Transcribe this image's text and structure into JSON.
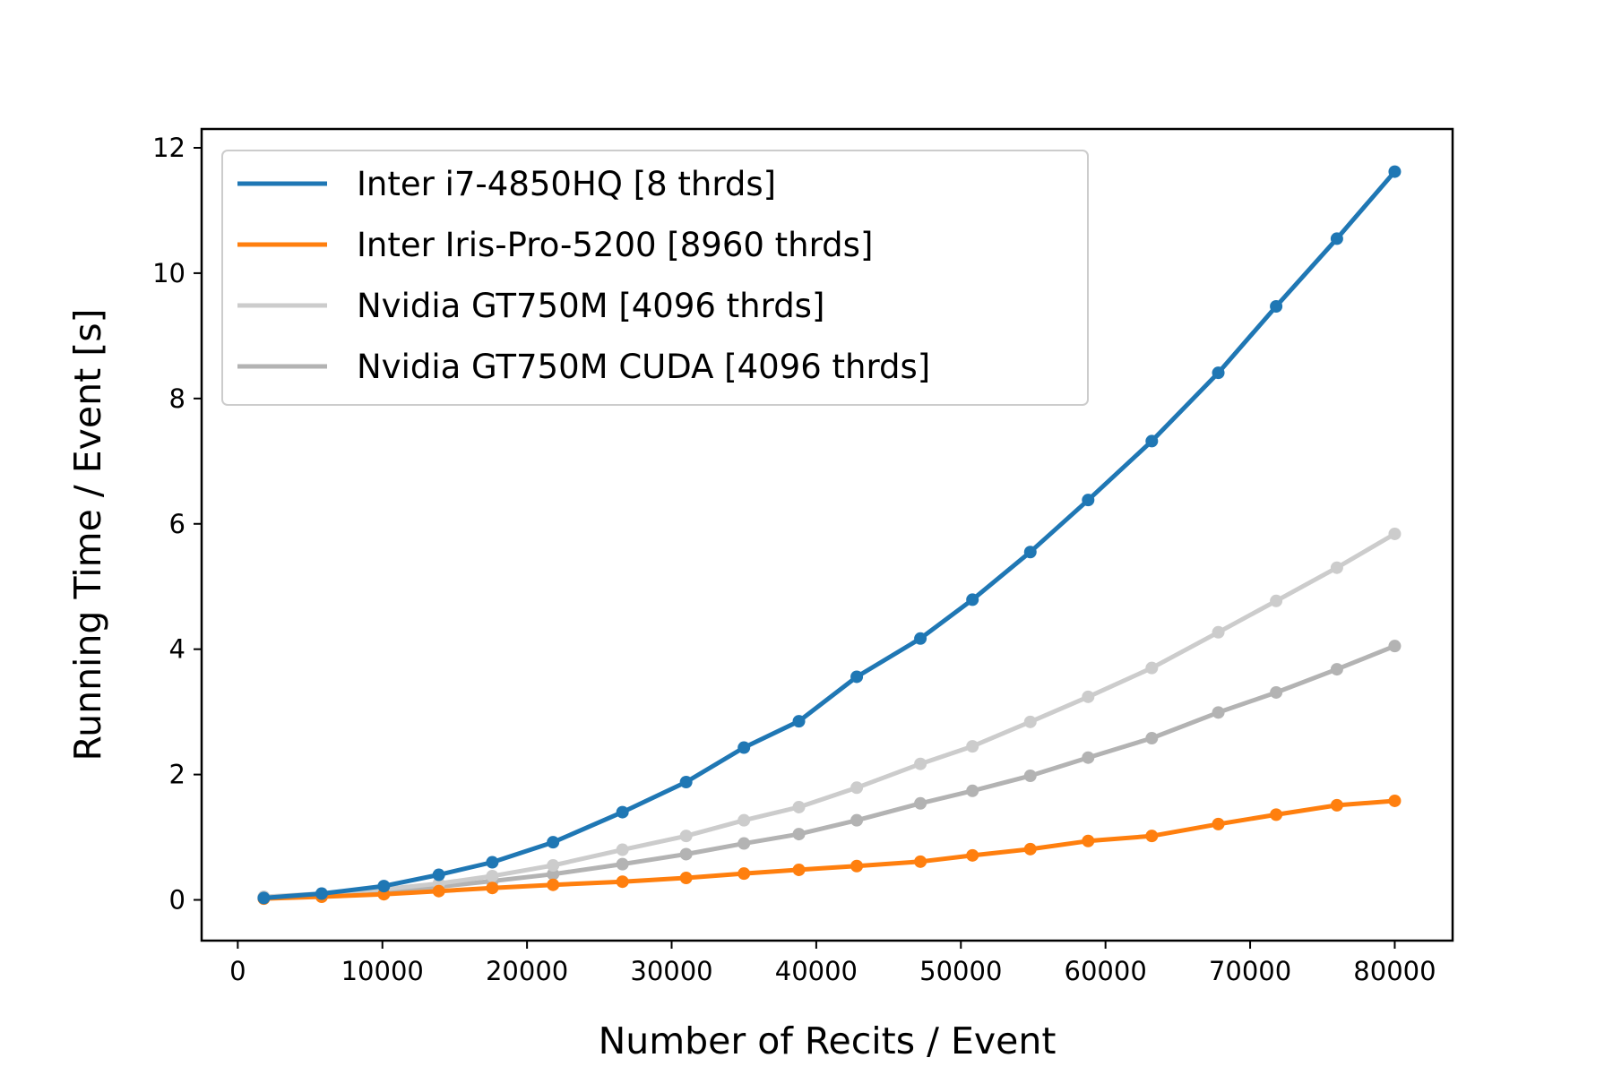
{
  "chart_data": {
    "type": "line",
    "title": "",
    "xlabel": "Number of Recits / Event",
    "ylabel": "Running Time / Event [s]",
    "xlim": [
      -2500,
      84000
    ],
    "ylim": [
      -0.65,
      12.3
    ],
    "xticks": [
      0,
      10000,
      20000,
      30000,
      40000,
      50000,
      60000,
      70000,
      80000
    ],
    "yticks": [
      0,
      2,
      4,
      6,
      8,
      10,
      12
    ],
    "legend_position": "top-left",
    "grid": false,
    "x": [
      1800,
      5800,
      10100,
      13900,
      17600,
      21800,
      26600,
      31000,
      35000,
      38800,
      42800,
      47200,
      50800,
      54800,
      58800,
      63200,
      67800,
      71800,
      76000,
      80000
    ],
    "series": [
      {
        "name": "Inter i7-4850HQ [8 thrds]",
        "color": "#1f77b4",
        "values": [
          0.03,
          0.1,
          0.22,
          0.4,
          0.6,
          0.92,
          1.4,
          1.88,
          2.43,
          2.85,
          3.56,
          4.17,
          4.79,
          5.55,
          6.38,
          7.32,
          8.41,
          9.47,
          10.55,
          11.62
        ]
      },
      {
        "name": "Inter Iris-Pro-5200 [8960 thrds]",
        "color": "#ff7f0e",
        "values": [
          0.02,
          0.05,
          0.09,
          0.14,
          0.19,
          0.24,
          0.29,
          0.35,
          0.42,
          0.48,
          0.54,
          0.61,
          0.71,
          0.81,
          0.94,
          1.02,
          1.21,
          1.36,
          1.51,
          1.58
        ]
      },
      {
        "name": "Nvidia GT750M [4096 thrds]",
        "color": "#cccccc",
        "values": [
          0.05,
          0.1,
          0.17,
          0.26,
          0.38,
          0.55,
          0.8,
          1.02,
          1.27,
          1.48,
          1.79,
          2.17,
          2.45,
          2.84,
          3.24,
          3.7,
          4.27,
          4.77,
          5.3,
          5.84
        ]
      },
      {
        "name": "Nvidia GT750M CUDA [4096 thrds]",
        "color": "#b3b3b3",
        "values": [
          0.04,
          0.09,
          0.14,
          0.21,
          0.3,
          0.41,
          0.57,
          0.73,
          0.9,
          1.05,
          1.27,
          1.54,
          1.74,
          1.98,
          2.27,
          2.58,
          2.99,
          3.31,
          3.68,
          4.05
        ]
      }
    ]
  }
}
